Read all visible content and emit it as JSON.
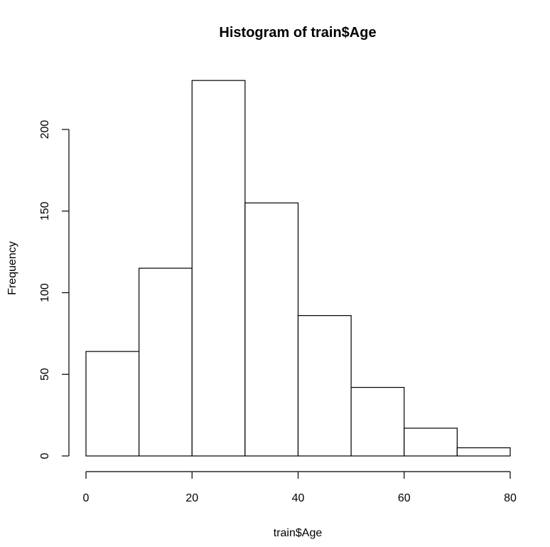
{
  "chart_data": {
    "type": "bar",
    "title": "Histogram of train$Age",
    "xlabel": "train$Age",
    "ylabel": "Frequency",
    "bins": [
      {
        "start": 0,
        "end": 10,
        "count": 64
      },
      {
        "start": 10,
        "end": 20,
        "count": 115
      },
      {
        "start": 20,
        "end": 30,
        "count": 230
      },
      {
        "start": 30,
        "end": 40,
        "count": 155
      },
      {
        "start": 40,
        "end": 50,
        "count": 86
      },
      {
        "start": 50,
        "end": 60,
        "count": 42
      },
      {
        "start": 60,
        "end": 70,
        "count": 17
      },
      {
        "start": 70,
        "end": 80,
        "count": 5
      }
    ],
    "xlim": [
      0,
      80
    ],
    "ylim": [
      0,
      230
    ],
    "x_ticks": [
      0,
      20,
      40,
      60,
      80
    ],
    "x_tick_labels": [
      "0",
      "20",
      "40",
      "60",
      "80"
    ],
    "y_ticks": [
      0,
      50,
      100,
      150,
      200
    ],
    "y_tick_labels": [
      "0",
      "50",
      "100",
      "150",
      "200"
    ],
    "grid": false,
    "bar_fill": "#ffffff",
    "bar_stroke": "#000000"
  }
}
